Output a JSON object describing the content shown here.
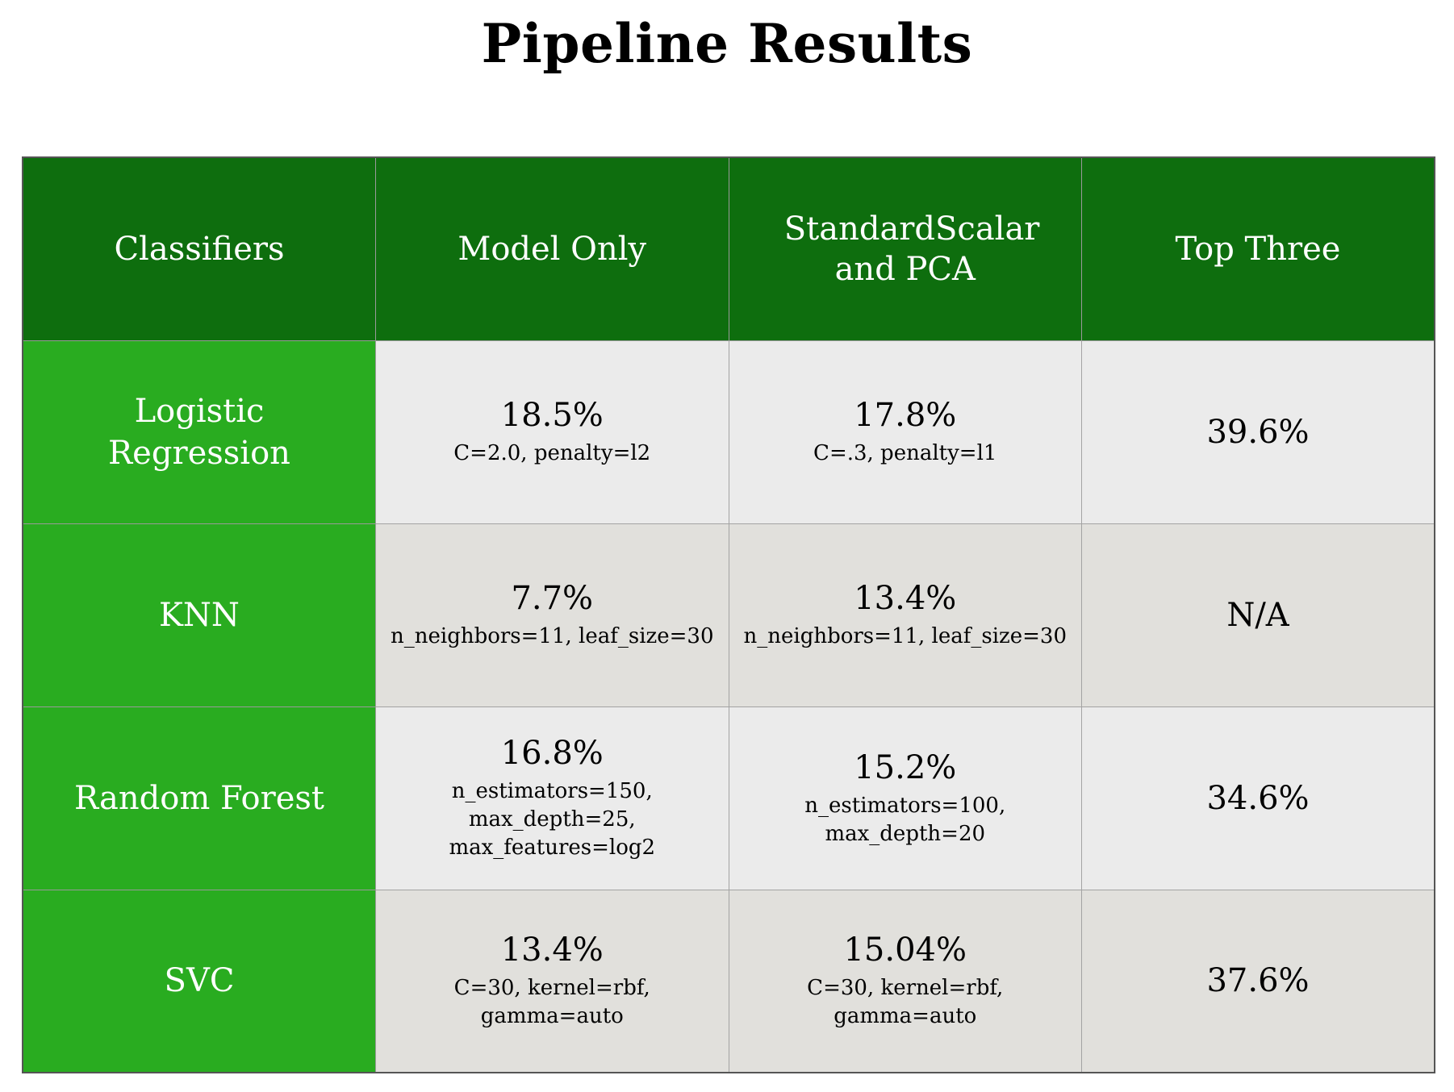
{
  "chart_data": {
    "type": "table",
    "title": "Pipeline Results",
    "columns": [
      "Classifiers",
      "Model Only",
      "StandardScalar and PCA",
      "Top Three"
    ],
    "rows": [
      {
        "classifier": "Logistic Regression",
        "cells": [
          {
            "value": "18.5%",
            "params": "C=2.0, penalty=l2"
          },
          {
            "value": "17.8%",
            "params": "C=.3, penalty=l1"
          },
          {
            "value": "39.6%",
            "params": ""
          }
        ]
      },
      {
        "classifier": "KNN",
        "cells": [
          {
            "value": "7.7%",
            "params": "n_neighbors=11, leaf_size=30"
          },
          {
            "value": "13.4%",
            "params": "n_neighbors=11, leaf_size=30"
          },
          {
            "value": "N/A",
            "params": ""
          }
        ]
      },
      {
        "classifier": "Random Forest",
        "cells": [
          {
            "value": "16.8%",
            "params": "n_estimators=150,\nmax_depth=25,\nmax_features=log2"
          },
          {
            "value": "15.2%",
            "params": "n_estimators=100,\nmax_depth=20"
          },
          {
            "value": "34.6%",
            "params": ""
          }
        ]
      },
      {
        "classifier": "SVC",
        "cells": [
          {
            "value": "13.4%",
            "params": "C=30, kernel=rbf,\ngamma=auto"
          },
          {
            "value": "15.04%",
            "params": "C=30, kernel=rbf,\ngamma=auto"
          },
          {
            "value": "37.6%",
            "params": ""
          }
        ]
      }
    ]
  },
  "colors": {
    "header_bg": "#0e6e0e",
    "row_header_bg": "#29ac20",
    "cell_bg_light": "#ebebeb",
    "cell_bg_dark": "#e1e0dc"
  }
}
